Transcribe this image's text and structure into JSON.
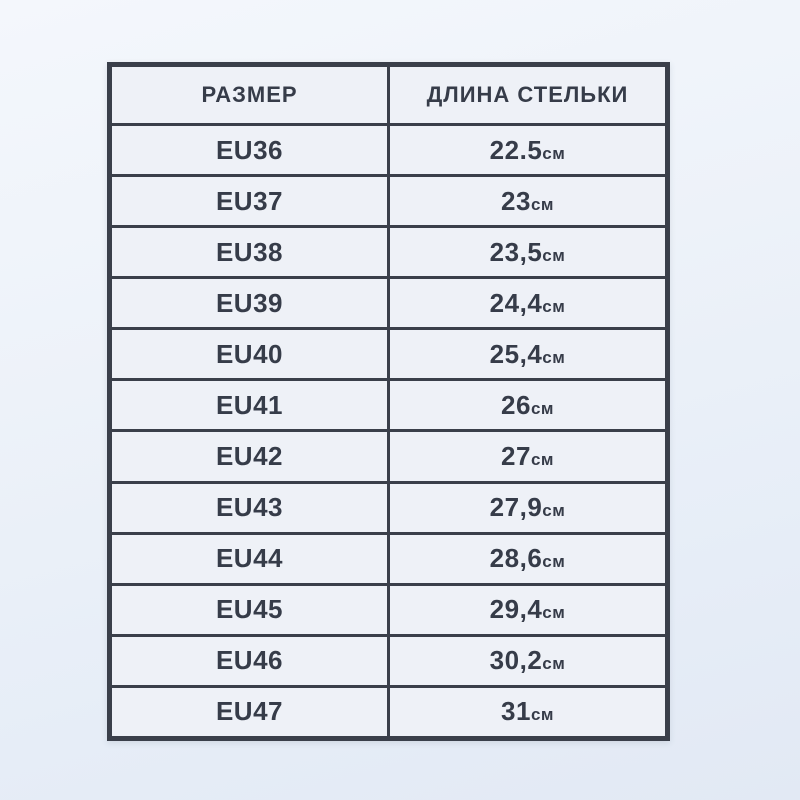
{
  "table": {
    "headers": {
      "size": "РАЗМЕР",
      "length": "ДЛИНА СТЕЛЬКИ"
    },
    "unit": "см",
    "rows": [
      {
        "size": "EU36",
        "value": "22.5"
      },
      {
        "size": "EU37",
        "value": "23"
      },
      {
        "size": "EU38",
        "value": "23,5"
      },
      {
        "size": "EU39",
        "value": "24,4"
      },
      {
        "size": "EU40",
        "value": "25,4"
      },
      {
        "size": "EU41",
        "value": "26"
      },
      {
        "size": "EU42",
        "value": "27"
      },
      {
        "size": "EU43",
        "value": "27,9"
      },
      {
        "size": "EU44",
        "value": "28,6"
      },
      {
        "size": "EU45",
        "value": "29,4"
      },
      {
        "size": "EU46",
        "value": "30,2"
      },
      {
        "size": "EU47",
        "value": "31"
      }
    ]
  },
  "chart_data": {
    "type": "table",
    "title": "",
    "columns": [
      "РАЗМЕР",
      "ДЛИНА СТЕЛЬКИ"
    ],
    "rows": [
      [
        "EU36",
        "22.5см"
      ],
      [
        "EU37",
        "23см"
      ],
      [
        "EU38",
        "23,5см"
      ],
      [
        "EU39",
        "24,4см"
      ],
      [
        "EU40",
        "25,4см"
      ],
      [
        "EU41",
        "26см"
      ],
      [
        "EU42",
        "27см"
      ],
      [
        "EU43",
        "27,9см"
      ],
      [
        "EU44",
        "28,6см"
      ],
      [
        "EU45",
        "29,4см"
      ],
      [
        "EU46",
        "30,2см"
      ],
      [
        "EU47",
        "31см"
      ]
    ]
  },
  "colors": {
    "border": "#3a3f4a",
    "text": "#363c49",
    "cell_background": "#eef1f7",
    "page_background_top": "#f4f7fc",
    "page_background_bottom": "#e2e9f4"
  }
}
